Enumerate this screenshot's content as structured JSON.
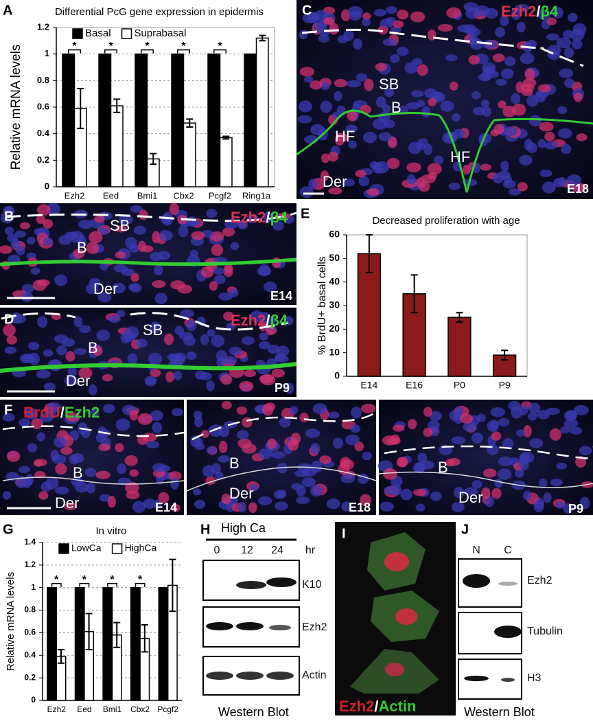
{
  "chart_data": [
    {
      "type": "bar",
      "title": "Differential PcG gene expression in epidermis",
      "y_label": "Relative mRNA levels",
      "categories": [
        "Ezh2",
        "Eed",
        "Bmi1",
        "Cbx2",
        "Pcgf2",
        "Ring1a"
      ],
      "series": [
        {
          "name": "Basal",
          "color": "#000000",
          "values": [
            1,
            1,
            1,
            1,
            1,
            1
          ]
        },
        {
          "name": "Suprabasal",
          "color": "#ffffff",
          "values": [
            0.59,
            0.61,
            0.21,
            0.48,
            0.37,
            1.12
          ],
          "errors": [
            0.15,
            0.05,
            0.04,
            0.03,
            0.01,
            0.02
          ]
        }
      ],
      "significance": [
        "*",
        "*",
        "*",
        "*",
        "*",
        null
      ],
      "ylim": [
        0,
        1.2
      ],
      "yticks": [
        0,
        0.2,
        0.4,
        0.6,
        0.8,
        1,
        1.2
      ],
      "grid": true,
      "legend": "top"
    },
    {
      "type": "bar",
      "title": "Decreased proliferation with age",
      "y_label": "% BrdU+ basal cells",
      "categories": [
        "E14",
        "E16",
        "P0",
        "P9"
      ],
      "series": [
        {
          "name": null,
          "color": "#8b1a1a",
          "values": [
            52,
            35,
            25,
            9
          ],
          "errors": [
            8,
            8,
            2,
            2
          ]
        }
      ],
      "ylim": [
        0,
        60
      ],
      "yticks": [
        0,
        10,
        20,
        30,
        40,
        50,
        60
      ],
      "grid": false
    },
    {
      "type": "bar",
      "title": "In vitro",
      "y_label": "Relative mRNA levels",
      "categories": [
        "Ezh2",
        "Eed",
        "Bmi1",
        "Cbx2",
        "Pcgf2"
      ],
      "series": [
        {
          "name": "LowCa",
          "color": "#000000",
          "values": [
            1,
            1,
            1,
            1,
            1
          ]
        },
        {
          "name": "HighCa",
          "color": "#ffffff",
          "values": [
            0.39,
            0.61,
            0.58,
            0.55,
            1.02
          ],
          "errors": [
            0.06,
            0.16,
            0.11,
            0.12,
            0.23
          ]
        }
      ],
      "significance": [
        "*",
        "*",
        "*",
        "*",
        null
      ],
      "ylim": [
        0,
        1.4
      ],
      "yticks": [
        0,
        0.2,
        0.4,
        0.6,
        0.8,
        1,
        1.2,
        1.4
      ],
      "grid": true,
      "legend": "top"
    }
  ],
  "panels": {
    "letters": [
      "A",
      "B",
      "C",
      "D",
      "E",
      "F",
      "G",
      "H",
      "I",
      "J"
    ]
  },
  "images": {
    "B": {
      "stain": [
        "Ezh2",
        "/",
        "β4"
      ],
      "labels": [
        "SB",
        "B",
        "Der"
      ],
      "stage": "E14"
    },
    "C": {
      "stain": [
        "Ezh2",
        "/",
        "β4"
      ],
      "labels": [
        "SB",
        "B",
        "HF",
        "HF",
        "Der"
      ],
      "stage": "E18"
    },
    "D": {
      "stain": [
        "Ezh2",
        "/",
        "β4"
      ],
      "labels": [
        "SB",
        "B",
        "Der"
      ],
      "stage": "P9"
    },
    "F": {
      "stain": [
        "BrdU",
        "/",
        "Ezh2"
      ],
      "subpanels": [
        {
          "labels": [
            "B",
            "Der"
          ],
          "stage": "E14"
        },
        {
          "labels": [
            "B",
            "Der"
          ],
          "stage": "E18"
        },
        {
          "labels": [
            "B",
            "Der"
          ],
          "stage": "P9"
        }
      ]
    },
    "I": {
      "stain": [
        "Ezh2",
        "/",
        "Actin"
      ]
    }
  },
  "western": {
    "H": {
      "title": "High Ca",
      "lanes": [
        "0",
        "12",
        "24"
      ],
      "unit": "hr",
      "blots": [
        "K10",
        "Ezh2",
        "Actin"
      ],
      "caption": "Western Blot"
    },
    "J": {
      "lanes": [
        "N",
        "C"
      ],
      "blots": [
        "Ezh2",
        "Tubulin",
        "H3"
      ],
      "caption": "Western Blot"
    }
  }
}
